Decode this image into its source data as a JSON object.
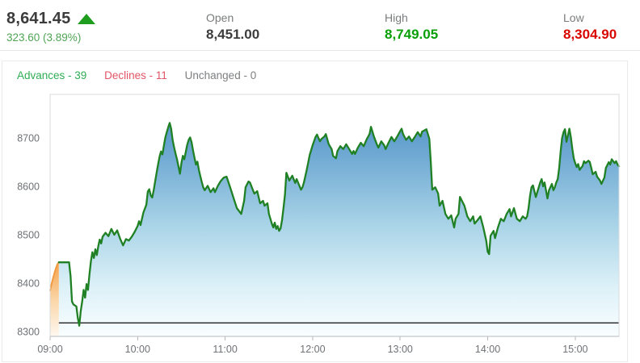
{
  "quote": {
    "last": "8,641.45",
    "change": "323.60 (3.89%)",
    "direction": "up",
    "open_label": "Open",
    "open": "8,451.00",
    "high_label": "High",
    "high": "8,749.05",
    "low_label": "Low",
    "low": "8,304.90"
  },
  "breadth": {
    "advances": "Advances - 39",
    "declines": "Declines - 11",
    "unchanged": "Unchanged - 0"
  },
  "chart_data": {
    "type": "area",
    "title": "",
    "xlabel": "",
    "ylabel": "",
    "session": "09:00-15:30",
    "x_axis": {
      "start_minutes": 0,
      "end_minutes": 390,
      "tick_minutes": [
        0,
        60,
        120,
        180,
        240,
        300,
        360
      ],
      "tick_labels": [
        "09:00",
        "10:00",
        "11:00",
        "12:00",
        "13:00",
        "14:00",
        "15:00"
      ]
    },
    "y_axis": {
      "min": 8290,
      "max": 8790,
      "ticks": [
        8300,
        8400,
        8500,
        8600,
        8700
      ],
      "grid": false
    },
    "previous_close": 8317.85,
    "legend": "none",
    "series": [
      {
        "name": "pre-open",
        "points": [
          [
            0,
            8385
          ],
          [
            1,
            8398
          ],
          [
            2,
            8410
          ],
          [
            3,
            8421
          ],
          [
            4,
            8431
          ],
          [
            5,
            8439
          ],
          [
            6,
            8443
          ]
        ]
      },
      {
        "name": "price",
        "points": [
          [
            6,
            8443
          ],
          [
            13,
            8443
          ],
          [
            14,
            8415
          ],
          [
            15,
            8362
          ],
          [
            16,
            8356
          ],
          [
            18,
            8352
          ],
          [
            19,
            8328
          ],
          [
            20,
            8312
          ],
          [
            21,
            8342
          ],
          [
            22,
            8362
          ],
          [
            23,
            8386
          ],
          [
            24,
            8370
          ],
          [
            25,
            8398
          ],
          [
            26,
            8386
          ],
          [
            27,
            8418
          ],
          [
            28,
            8445
          ],
          [
            29,
            8464
          ],
          [
            30,
            8452
          ],
          [
            31,
            8470
          ],
          [
            32,
            8458
          ],
          [
            33,
            8476
          ],
          [
            34,
            8490
          ],
          [
            35,
            8482
          ],
          [
            36,
            8496
          ],
          [
            38,
            8504
          ],
          [
            40,
            8497
          ],
          [
            42,
            8512
          ],
          [
            44,
            8500
          ],
          [
            46,
            8509
          ],
          [
            48,
            8492
          ],
          [
            50,
            8478
          ],
          [
            52,
            8491
          ],
          [
            54,
            8488
          ],
          [
            56,
            8496
          ],
          [
            58,
            8506
          ],
          [
            60,
            8518
          ],
          [
            61,
            8528
          ],
          [
            62,
            8520
          ],
          [
            64,
            8546
          ],
          [
            66,
            8562
          ],
          [
            67,
            8589
          ],
          [
            68,
            8594
          ],
          [
            69,
            8581
          ],
          [
            70,
            8577
          ],
          [
            71,
            8592
          ],
          [
            72,
            8610
          ],
          [
            73,
            8628
          ],
          [
            74,
            8645
          ],
          [
            75,
            8661
          ],
          [
            76,
            8672
          ],
          [
            77,
            8666
          ],
          [
            78,
            8684
          ],
          [
            79,
            8701
          ],
          [
            80,
            8712
          ],
          [
            81,
            8722
          ],
          [
            82,
            8731
          ],
          [
            83,
            8719
          ],
          [
            84,
            8696
          ],
          [
            85,
            8681
          ],
          [
            86,
            8668
          ],
          [
            87,
            8656
          ],
          [
            88,
            8641
          ],
          [
            89,
            8626
          ],
          [
            90,
            8648
          ],
          [
            91,
            8663
          ],
          [
            92,
            8656
          ],
          [
            93,
            8671
          ],
          [
            94,
            8686
          ],
          [
            95,
            8696
          ],
          [
            96,
            8701
          ],
          [
            97,
            8691
          ],
          [
            98,
            8674
          ],
          [
            99,
            8659
          ],
          [
            100,
            8645
          ],
          [
            101,
            8651
          ],
          [
            102,
            8634
          ],
          [
            103,
            8621
          ],
          [
            104,
            8609
          ],
          [
            105,
            8598
          ],
          [
            106,
            8592
          ],
          [
            108,
            8601
          ],
          [
            110,
            8588
          ],
          [
            112,
            8596
          ],
          [
            113,
            8588
          ],
          [
            115,
            8601
          ],
          [
            117,
            8611
          ],
          [
            119,
            8618
          ],
          [
            121,
            8620
          ],
          [
            124,
            8593
          ],
          [
            126,
            8574
          ],
          [
            128,
            8555
          ],
          [
            131,
            8543
          ],
          [
            133,
            8570
          ],
          [
            134,
            8598
          ],
          [
            136,
            8610
          ],
          [
            137,
            8608
          ],
          [
            140,
            8585
          ],
          [
            142,
            8590
          ],
          [
            144,
            8565
          ],
          [
            146,
            8570
          ],
          [
            147,
            8560
          ],
          [
            149,
            8565
          ],
          [
            150,
            8543
          ],
          [
            152,
            8523
          ],
          [
            153,
            8515
          ],
          [
            154,
            8525
          ],
          [
            155,
            8512
          ],
          [
            156,
            8518
          ],
          [
            157,
            8508
          ],
          [
            158,
            8513
          ],
          [
            159,
            8530
          ],
          [
            160,
            8555
          ],
          [
            161,
            8582
          ],
          [
            162,
            8628
          ],
          [
            164,
            8612
          ],
          [
            166,
            8622
          ],
          [
            168,
            8607
          ],
          [
            169,
            8615
          ],
          [
            172,
            8593
          ],
          [
            173,
            8598
          ],
          [
            174,
            8608
          ],
          [
            176,
            8635
          ],
          [
            178,
            8665
          ],
          [
            180,
            8685
          ],
          [
            182,
            8702
          ],
          [
            183,
            8707
          ],
          [
            185,
            8693
          ],
          [
            186,
            8698
          ],
          [
            188,
            8703
          ],
          [
            189,
            8708
          ],
          [
            191,
            8687
          ],
          [
            193,
            8677
          ],
          [
            194,
            8663
          ],
          [
            196,
            8658
          ],
          [
            197,
            8673
          ],
          [
            199,
            8683
          ],
          [
            201,
            8677
          ],
          [
            203,
            8687
          ],
          [
            205,
            8677
          ],
          [
            207,
            8667
          ],
          [
            208,
            8673
          ],
          [
            209,
            8667
          ],
          [
            211,
            8680
          ],
          [
            213,
            8690
          ],
          [
            215,
            8683
          ],
          [
            217,
            8697
          ],
          [
            219,
            8708
          ],
          [
            220,
            8723
          ],
          [
            222,
            8703
          ],
          [
            224,
            8687
          ],
          [
            225,
            8680
          ],
          [
            227,
            8693
          ],
          [
            229,
            8685
          ],
          [
            230,
            8677
          ],
          [
            232,
            8690
          ],
          [
            234,
            8702
          ],
          [
            236,
            8693
          ],
          [
            238,
            8703
          ],
          [
            240,
            8714
          ],
          [
            241,
            8719
          ],
          [
            242,
            8708
          ],
          [
            244,
            8696
          ],
          [
            246,
            8703
          ],
          [
            248,
            8693
          ],
          [
            250,
            8702
          ],
          [
            252,
            8712
          ],
          [
            254,
            8703
          ],
          [
            255,
            8713
          ],
          [
            258,
            8718
          ],
          [
            260,
            8698
          ],
          [
            261,
            8650
          ],
          [
            262,
            8593
          ],
          [
            264,
            8598
          ],
          [
            266,
            8585
          ],
          [
            267,
            8560
          ],
          [
            269,
            8570
          ],
          [
            271,
            8543
          ],
          [
            273,
            8533
          ],
          [
            275,
            8540
          ],
          [
            277,
            8515
          ],
          [
            278,
            8533
          ],
          [
            280,
            8543
          ],
          [
            281,
            8578
          ],
          [
            284,
            8560
          ],
          [
            286,
            8538
          ],
          [
            288,
            8528
          ],
          [
            290,
            8538
          ],
          [
            291,
            8523
          ],
          [
            293,
            8530
          ],
          [
            295,
            8538
          ],
          [
            297,
            8515
          ],
          [
            299,
            8488
          ],
          [
            300,
            8465
          ],
          [
            301,
            8460
          ],
          [
            302,
            8498
          ],
          [
            304,
            8508
          ],
          [
            305,
            8493
          ],
          [
            307,
            8515
          ],
          [
            309,
            8533
          ],
          [
            311,
            8528
          ],
          [
            313,
            8543
          ],
          [
            315,
            8553
          ],
          [
            316,
            8538
          ],
          [
            318,
            8555
          ],
          [
            320,
            8533
          ],
          [
            322,
            8528
          ],
          [
            324,
            8538
          ],
          [
            326,
            8533
          ],
          [
            327,
            8538
          ],
          [
            328,
            8555
          ],
          [
            329,
            8580
          ],
          [
            330,
            8598
          ],
          [
            331,
            8602
          ],
          [
            333,
            8578
          ],
          [
            334,
            8588
          ],
          [
            336,
            8608
          ],
          [
            337,
            8615
          ],
          [
            338,
            8600
          ],
          [
            339,
            8608
          ],
          [
            341,
            8575
          ],
          [
            342,
            8592
          ],
          [
            344,
            8605
          ],
          [
            345,
            8592
          ],
          [
            346,
            8598
          ],
          [
            347,
            8608
          ],
          [
            348,
            8615
          ],
          [
            349,
            8638
          ],
          [
            350,
            8672
          ],
          [
            351,
            8700
          ],
          [
            352,
            8712
          ],
          [
            353,
            8718
          ],
          [
            354,
            8692
          ],
          [
            355,
            8705
          ],
          [
            356,
            8719
          ],
          [
            357,
            8702
          ],
          [
            358,
            8678
          ],
          [
            359,
            8658
          ],
          [
            360,
            8648
          ],
          [
            361,
            8640
          ],
          [
            362,
            8646
          ],
          [
            363,
            8634
          ],
          [
            365,
            8642
          ],
          [
            366,
            8652
          ],
          [
            367,
            8648
          ],
          [
            369,
            8653
          ],
          [
            370,
            8650
          ],
          [
            371,
            8638
          ],
          [
            372,
            8625
          ],
          [
            374,
            8630
          ],
          [
            375,
            8620
          ],
          [
            377,
            8612
          ],
          [
            378,
            8605
          ],
          [
            380,
            8618
          ],
          [
            381,
            8638
          ],
          [
            383,
            8650
          ],
          [
            384,
            8645
          ],
          [
            385,
            8656
          ],
          [
            387,
            8648
          ],
          [
            388,
            8652
          ],
          [
            389,
            8645
          ],
          [
            390,
            8641.45
          ]
        ]
      }
    ],
    "colors": {
      "price_line": "#1f8024",
      "preopen_line": "#f09a42",
      "prev_close_line": "#222222",
      "frame": "#d9dbde",
      "axis_bottom": "#b4b9bd",
      "area_fill_stops": [
        [
          "0%",
          "#4588c2"
        ],
        [
          "25%",
          "#6fa9d3"
        ],
        [
          "55%",
          "#abd5e8"
        ],
        [
          "80%",
          "#ddf1f8"
        ],
        [
          "100%",
          "#f9feff"
        ]
      ],
      "preopen_fill_stops": [
        [
          "0%",
          "#f5a24a"
        ],
        [
          "55%",
          "#fbd9ae"
        ],
        [
          "100%",
          "#fef7ef"
        ]
      ]
    }
  }
}
